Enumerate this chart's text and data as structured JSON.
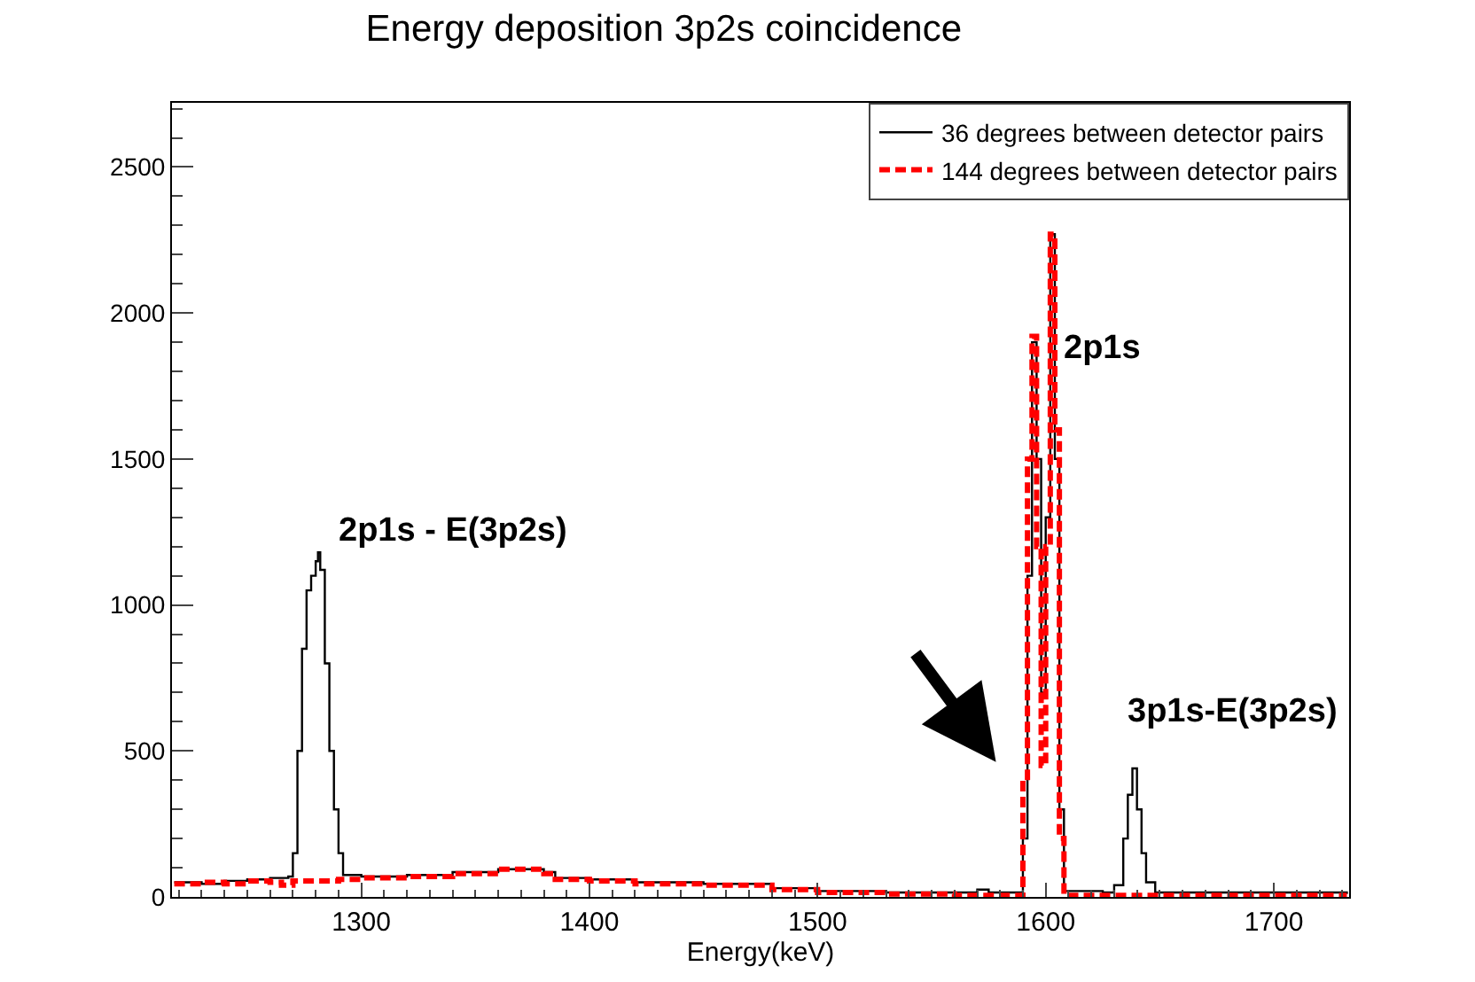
{
  "chart_data": {
    "type": "step",
    "title": "Energy deposition 3p2s coincidence",
    "xlabel": "Energy(keV)",
    "xlim": [
      1217,
      1733
    ],
    "xticks": [
      1300,
      1400,
      1500,
      1600,
      1700
    ],
    "ylim": [
      0,
      2720
    ],
    "yticks": [
      0,
      500,
      1000,
      1500,
      2000,
      2500
    ],
    "legend": "top right",
    "marker": "none",
    "series": [
      {
        "name": "36 degrees between detector pairs",
        "color": "#000000",
        "line_style": "solid",
        "x": [
          1218,
          1230,
          1240,
          1250,
          1260,
          1268,
          1270,
          1272,
          1274,
          1276,
          1278,
          1280,
          1281,
          1282,
          1284,
          1286,
          1288,
          1290,
          1292,
          1300,
          1320,
          1340,
          1360,
          1380,
          1385,
          1400,
          1420,
          1450,
          1480,
          1500,
          1530,
          1560,
          1570,
          1575,
          1588,
          1590,
          1592,
          1594,
          1596,
          1598,
          1600,
          1602,
          1604,
          1606,
          1608,
          1625,
          1630,
          1634,
          1636,
          1638,
          1640,
          1642,
          1644,
          1648,
          1700,
          1732
        ],
        "values": [
          50,
          45,
          55,
          60,
          65,
          70,
          150,
          500,
          850,
          1050,
          1100,
          1150,
          1180,
          1120,
          800,
          500,
          300,
          150,
          75,
          70,
          75,
          85,
          95,
          85,
          65,
          60,
          50,
          45,
          30,
          20,
          15,
          15,
          25,
          15,
          15,
          200,
          1100,
          1900,
          1500,
          700,
          1300,
          2270,
          1500,
          300,
          20,
          15,
          40,
          200,
          350,
          440,
          300,
          150,
          50,
          15,
          15,
          10
        ]
      },
      {
        "name": "144 degrees between detector pairs",
        "color": "#ff0000",
        "line_style": "dashed",
        "x": [
          1218,
          1230,
          1240,
          1250,
          1260,
          1265,
          1270,
          1280,
          1290,
          1300,
          1320,
          1340,
          1360,
          1380,
          1385,
          1400,
          1420,
          1450,
          1480,
          1500,
          1530,
          1560,
          1588,
          1590,
          1592,
          1594,
          1596,
          1598,
          1600,
          1602,
          1604,
          1606,
          1608,
          1732
        ],
        "values": [
          45,
          50,
          45,
          55,
          50,
          40,
          55,
          55,
          60,
          65,
          70,
          80,
          95,
          80,
          60,
          55,
          45,
          40,
          25,
          15,
          10,
          5,
          5,
          400,
          1500,
          1920,
          1200,
          450,
          1200,
          2270,
          1600,
          200,
          5,
          5
        ]
      }
    ],
    "annotations": [
      {
        "text": "2p1s - E(3p2s)",
        "x": 1282,
        "y": 1180
      },
      {
        "text": "2p1s",
        "x": 1602,
        "y": 2000
      },
      {
        "text": "3p1s-E(3p2s)",
        "x": 1638,
        "y": 440
      }
    ]
  }
}
